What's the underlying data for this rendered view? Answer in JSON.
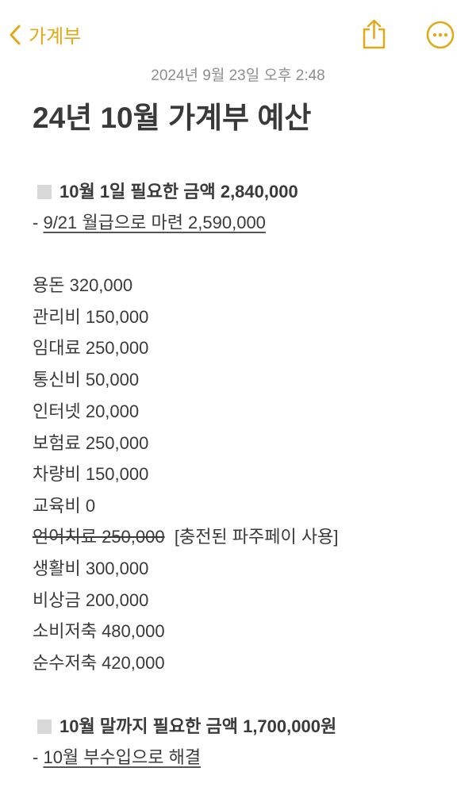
{
  "nav": {
    "back_label": "가계부",
    "accent": "#e3a915",
    "icons": [
      "chevron-left-icon",
      "share-icon",
      "more-icon"
    ]
  },
  "note": {
    "date": "2024년 9월 23일 오후 2:48",
    "title": "24년 10월 가계부 예산",
    "section1": {
      "heading": "10월 1일 필요한 금액 2,840,000",
      "sub_prefix": "- ",
      "sub_link": "9/21 월급으로 마련 2,590,000"
    },
    "items": [
      "용돈 320,000",
      "관리비 150,000",
      "임대료 250,000",
      "통신비 50,000",
      "인터넷 20,000",
      "보험료 250,000",
      "차량비 150,000",
      "교육비 0"
    ],
    "struck_item": {
      "text": "언어치료 250,000",
      "note": "[충전된 파주페이 사용]"
    },
    "items2": [
      "생활비 300,000",
      "비상금 200,000",
      "소비저축 480,000",
      "순수저축 420,000"
    ],
    "section2": {
      "heading": "10월 말까지 필요한 금액 1,700,000원",
      "sub_prefix": "- ",
      "sub_link": "10월 부수입으로 해결"
    }
  }
}
